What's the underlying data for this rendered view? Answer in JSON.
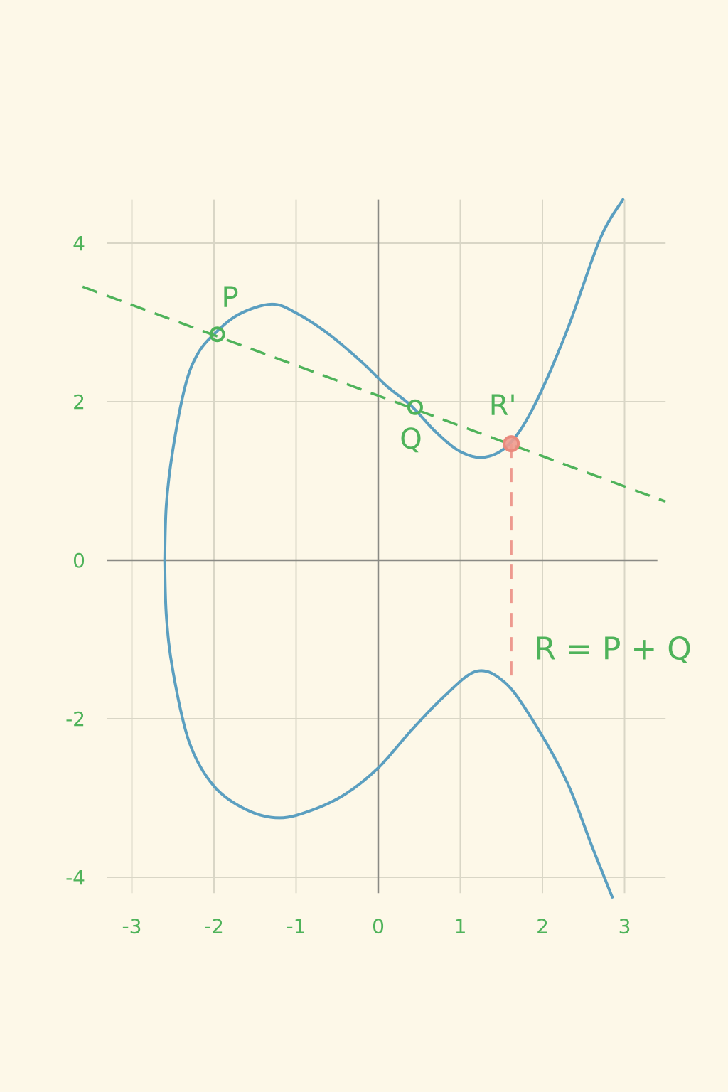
{
  "chart_data": {
    "type": "line",
    "title": "",
    "xlabel": "",
    "ylabel": "",
    "xlim": [
      -3.3,
      3.5
    ],
    "ylim": [
      -4.25,
      4.55
    ],
    "x_ticks": [
      -3,
      -2,
      -1,
      0,
      1,
      2,
      3
    ],
    "y_ticks": [
      -4,
      -2,
      0,
      2,
      4
    ],
    "x_tick_labels": [
      "-3",
      "-2",
      "-1",
      "0",
      "1",
      "2",
      "3"
    ],
    "y_tick_labels": [
      "-4",
      "-2",
      "0",
      "2",
      "4"
    ],
    "grid": true,
    "series": [
      {
        "kind": "curve",
        "color": "#5b9fc0",
        "upper_branch": [
          [
            -2.6,
            0
          ],
          [
            -2.58,
            0.7
          ],
          [
            -2.5,
            1.4
          ],
          [
            -2.35,
            2.2
          ],
          [
            -2.2,
            2.6
          ],
          [
            -2.0,
            2.85
          ],
          [
            -1.7,
            3.1
          ],
          [
            -1.3,
            3.23
          ],
          [
            -1.0,
            3.12
          ],
          [
            -0.6,
            2.85
          ],
          [
            -0.2,
            2.5
          ],
          [
            0.1,
            2.2
          ],
          [
            0.4,
            1.95
          ],
          [
            0.7,
            1.62
          ],
          [
            1.0,
            1.37
          ],
          [
            1.3,
            1.3
          ],
          [
            1.6,
            1.47
          ],
          [
            1.9,
            1.95
          ],
          [
            2.3,
            2.9
          ],
          [
            2.7,
            4.05
          ],
          [
            2.98,
            4.55
          ]
        ],
        "lower_branch": [
          [
            -2.6,
            0
          ],
          [
            -2.58,
            -0.7
          ],
          [
            -2.5,
            -1.4
          ],
          [
            -2.3,
            -2.3
          ],
          [
            -2.0,
            -2.85
          ],
          [
            -1.6,
            -3.15
          ],
          [
            -1.2,
            -3.25
          ],
          [
            -0.8,
            -3.15
          ],
          [
            -0.4,
            -2.95
          ],
          [
            0.0,
            -2.62
          ],
          [
            0.4,
            -2.15
          ],
          [
            0.8,
            -1.72
          ],
          [
            1.2,
            -1.4
          ],
          [
            1.55,
            -1.55
          ],
          [
            1.9,
            -2.05
          ],
          [
            2.3,
            -2.8
          ],
          [
            2.6,
            -3.6
          ],
          [
            2.85,
            -4.25
          ]
        ]
      },
      {
        "kind": "secant",
        "color": "#4fb35a",
        "dashed": true,
        "points": [
          [
            -3.6,
            3.45
          ],
          [
            3.5,
            0.74
          ]
        ]
      },
      {
        "kind": "vertical-guide",
        "color": "#ee9a8f",
        "dashed": true,
        "points": [
          [
            1.62,
            1.47
          ],
          [
            1.62,
            -1.5
          ]
        ]
      }
    ],
    "points": [
      {
        "label": "P",
        "x": -1.96,
        "y": 2.85,
        "color": "#4fb35a"
      },
      {
        "label": "Q",
        "x": 0.45,
        "y": 1.93,
        "color": "#4fb35a"
      },
      {
        "label": "R'",
        "x": 1.62,
        "y": 1.47,
        "color": "#ee9a8f"
      }
    ],
    "annotations": [
      {
        "text": "R = P + Q",
        "x": 1.9,
        "y": -1.25
      }
    ]
  }
}
